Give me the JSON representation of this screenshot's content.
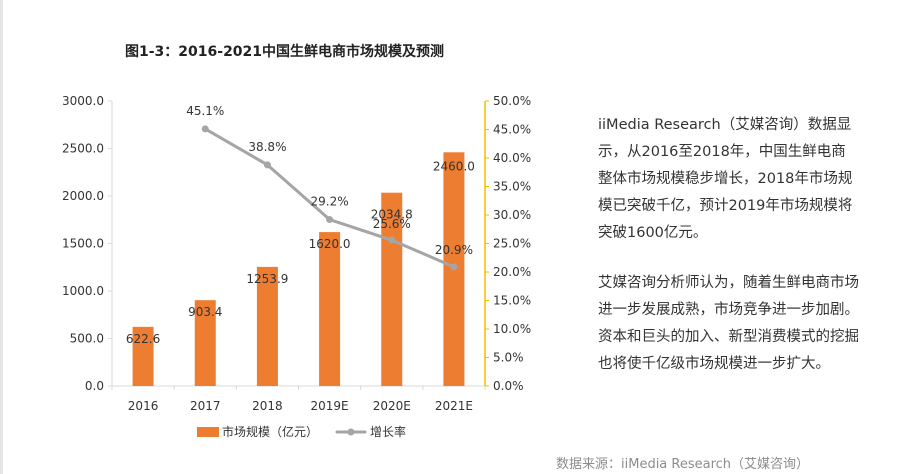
{
  "title": "图1-3：2016-2021中国生鲜电商市场规模及预测",
  "colors": {
    "bar": "#ed7d31",
    "line": "#a5a5a5",
    "axis_right": "#f0c000",
    "axis": "#d9d9d9",
    "text": "#333333"
  },
  "chart_data": {
    "type": "bar",
    "title": "图1-3：2016-2021中国生鲜电商市场规模及预测",
    "categories": [
      "2016",
      "2017",
      "2018",
      "2019E",
      "2020E",
      "2021E"
    ],
    "series": [
      {
        "name": "市场规模（亿元）",
        "type": "bar",
        "axis": "left",
        "values": [
          622.6,
          903.4,
          1253.9,
          1620.0,
          2034.8,
          2460.0
        ],
        "labels": [
          "622.6",
          "903.4",
          "1253.9",
          "1620.0",
          "2034.8",
          "2460.0"
        ]
      },
      {
        "name": "增长率",
        "type": "line",
        "axis": "right",
        "values": [
          null,
          45.1,
          38.8,
          29.2,
          25.6,
          20.9
        ],
        "labels": [
          "",
          "45.1%",
          "38.8%",
          "29.2%",
          "25.6%",
          "20.9%"
        ]
      }
    ],
    "ylim_left": [
      0,
      3000
    ],
    "ylim_right": [
      0,
      50
    ],
    "yticks_left": [
      "0.0",
      "500.0",
      "1000.0",
      "1500.0",
      "2000.0",
      "2500.0",
      "3000.0"
    ],
    "yticks_right": [
      "0.0%",
      "5.0%",
      "10.0%",
      "15.0%",
      "20.0%",
      "25.0%",
      "30.0%",
      "35.0%",
      "40.0%",
      "45.0%",
      "50.0%"
    ],
    "grid": false,
    "legend_position": "bottom"
  },
  "text": {
    "paragraph1": "iiMedia Research（艾媒咨询）数据显示，从2016至2018年，中国生鲜电商整体市场规模稳步增长，2018年市场规模已突破千亿，预计2019年市场规模将突破1600亿元。",
    "paragraph2": "艾媒咨询分析师认为，随着生鲜电商市场进一步发展成熟，市场竞争进一步加剧。资本和巨头的加入、新型消费模式的挖掘也将使千亿级市场规模进一步扩大。"
  },
  "source": "数据来源：iiMedia Research（艾媒咨询）"
}
